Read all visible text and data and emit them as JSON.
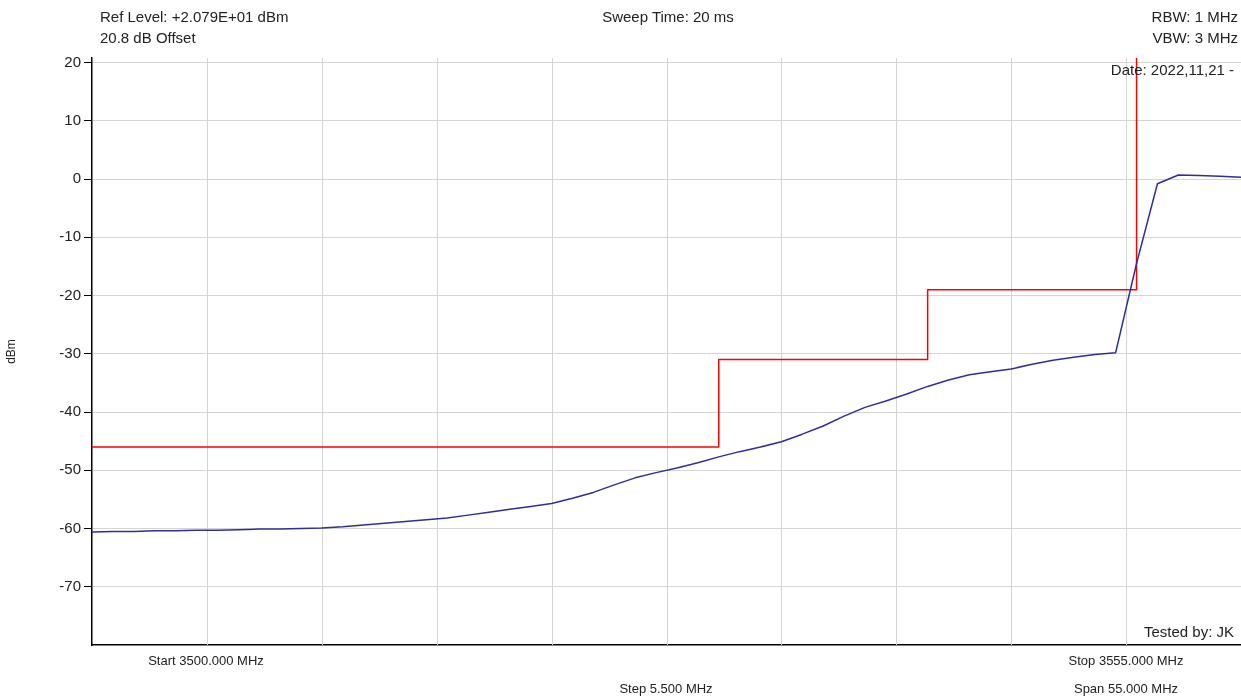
{
  "chart_data": {
    "type": "line",
    "ylabel": "dBm",
    "annotations": [
      "Ref Level: +2.079E+01 dBm",
      "20.8 dB Offset",
      "Sweep Time: 20 ms",
      "RBW: 1 MHz",
      "VBW: 3 MHz",
      "Date: 2022,11,21 -",
      "Tested by: JK",
      "Start 3500.000 MHz",
      "Step 5.500 MHz",
      "Stop 3555.000 MHz",
      "Span 55.000 MHz"
    ],
    "categories": [
      null,
      null,
      null,
      null,
      null,
      null,
      null,
      null,
      null,
      null,
      null,
      null,
      null,
      null,
      null,
      null,
      null,
      null,
      null,
      null,
      null,
      null,
      null,
      null,
      null,
      null,
      null,
      null,
      null,
      null,
      null,
      null,
      null,
      null,
      null,
      null,
      null,
      null,
      null,
      null,
      null,
      null,
      null,
      null,
      null,
      null,
      null,
      null,
      null,
      null,
      null,
      null,
      null,
      null,
      null,
      null
    ],
    "series": [
      {
        "color": "#2e2e9a",
        "values": [
          -60.6,
          -60.5,
          -60.5,
          -60.4,
          -60.4,
          -60.3,
          -60.3,
          -60.2,
          -60.1,
          -60.1,
          -60,
          -59.9,
          -59.7,
          -59.4,
          -59.1,
          -58.8,
          -58.5,
          -58.2,
          -57.7,
          -57.2,
          -56.7,
          -56.2,
          -55.7,
          -54.8,
          -53.8,
          -52.5,
          -51.3,
          -50.4,
          -49.6,
          -48.7,
          -47.7,
          -46.8,
          -46,
          -45.1,
          -43.8,
          -42.4,
          -40.7,
          -39.2,
          -38.1,
          -36.9,
          -35.6,
          -34.5,
          -33.6,
          -33.1,
          -32.6,
          -31.8,
          -31.1,
          -30.6,
          -30.1,
          -29.8,
          -14.5,
          -0.8,
          0.7,
          0.6,
          0.5,
          0.3
        ]
      },
      {
        "type": "step",
        "color": "#ff0000",
        "values": [
          -46,
          -46,
          -46,
          -46,
          -46,
          -46,
          -46,
          -46,
          -46,
          -46,
          -46,
          -46,
          -46,
          -46,
          -46,
          -46,
          -46,
          -46,
          -46,
          -46,
          -46,
          -46,
          -46,
          -46,
          -46,
          -46,
          -46,
          -46,
          -46,
          -46,
          -31,
          -31,
          -31,
          -31,
          -31,
          -31,
          -31,
          -31,
          -31,
          -31,
          -19,
          -19,
          -19,
          -19,
          -19,
          -19,
          -19,
          -19,
          -19,
          -19,
          20.79,
          null,
          null,
          null,
          null,
          null
        ]
      }
    ],
    "ylim": [
      -80,
      20.79
    ],
    "yticks": [
      -70,
      -60,
      -50,
      -40,
      -30,
      -20,
      -10,
      0,
      10,
      20
    ],
    "tick_labels": "y",
    "grid": true,
    "legend": false,
    "marker": "none",
    "line_style": "solid"
  }
}
